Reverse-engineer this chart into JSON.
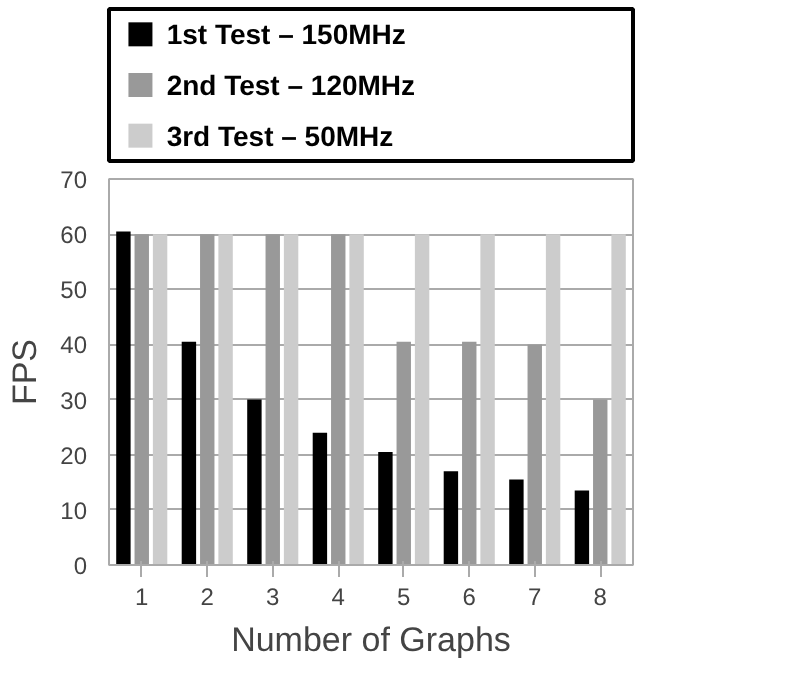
{
  "chart_data": {
    "type": "bar",
    "xlabel": "Number of Graphs",
    "ylabel": "FPS",
    "categories": [
      "1",
      "2",
      "3",
      "4",
      "5",
      "6",
      "7",
      "8"
    ],
    "series": [
      {
        "name": "1st Test – 150MHz",
        "color": "#000000",
        "values": [
          60.5,
          40.5,
          30,
          24,
          20.5,
          17,
          15.5,
          13.5
        ]
      },
      {
        "name": "2nd Test – 120MHz",
        "color": "#999999",
        "values": [
          60,
          60,
          60,
          60,
          40.5,
          40.5,
          40,
          30
        ]
      },
      {
        "name": "3rd Test – 50MHz",
        "color": "#cccccc",
        "values": [
          60,
          60,
          60,
          60,
          60,
          60,
          60,
          60
        ]
      }
    ],
    "ylim": [
      0,
      70
    ],
    "yticks": [
      0,
      10,
      20,
      30,
      40,
      50,
      60,
      70
    ],
    "grid": "y",
    "legend": "top"
  }
}
